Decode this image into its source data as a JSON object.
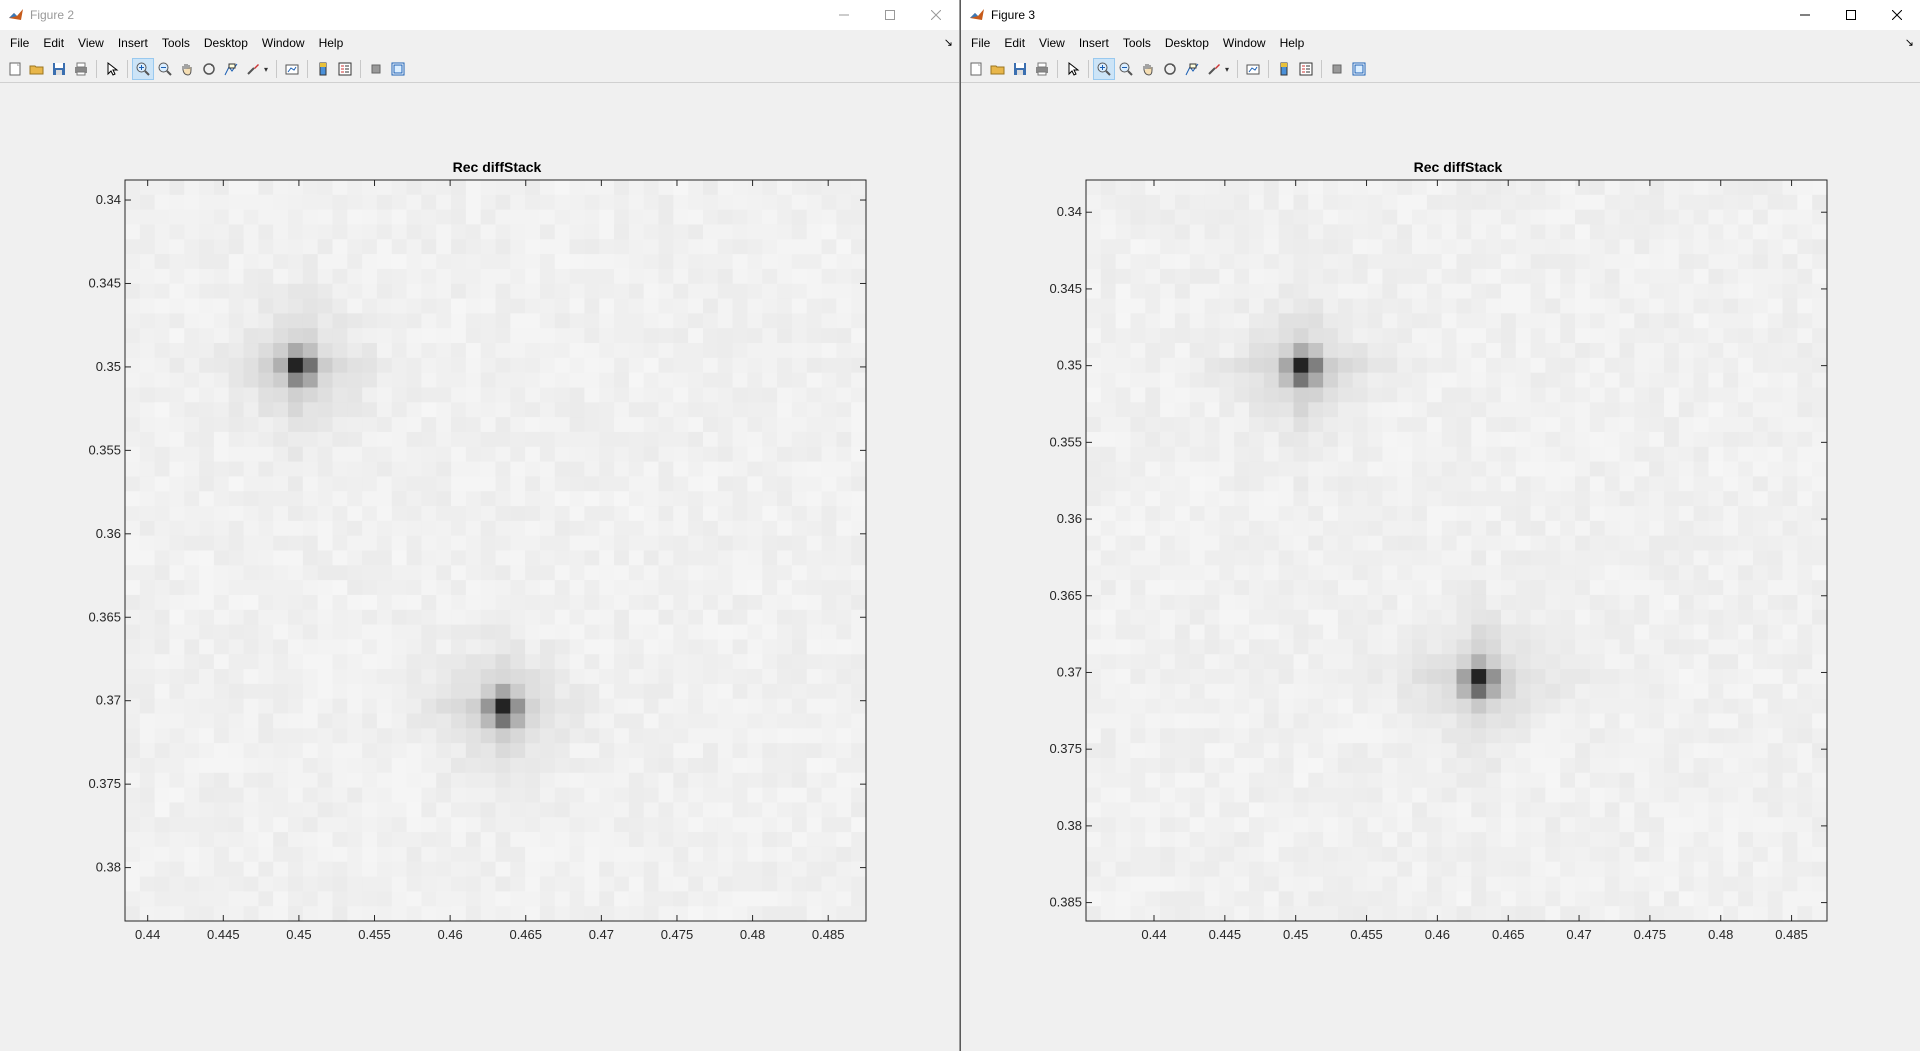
{
  "windows": [
    {
      "title": "Figure 2",
      "menus": [
        "File",
        "Edit",
        "View",
        "Insert",
        "Tools",
        "Desktop",
        "Window",
        "Help"
      ],
      "axes_title": "Rec diffStack",
      "chart_data": {
        "type": "heatmap",
        "title": "Rec diffStack",
        "colormap": "gray (white = low, black = high)",
        "x_ticks": [
          "0.44",
          "0.445",
          "0.45",
          "0.455",
          "0.46",
          "0.465",
          "0.47",
          "0.475",
          "0.48",
          "0.485"
        ],
        "y_ticks": [
          "0.34",
          "0.345",
          "0.35",
          "0.355",
          "0.36",
          "0.365",
          "0.37",
          "0.375",
          "0.38"
        ],
        "xlim": [
          0.4385,
          0.4875
        ],
        "ylim": [
          0.3388,
          0.3832
        ],
        "y_reversed": true,
        "grid": "50x50",
        "peaks": [
          {
            "x": 0.45,
            "y": 0.35
          },
          {
            "x": 0.4635,
            "y": 0.3705
          }
        ]
      }
    },
    {
      "title": "Figure 3",
      "menus": [
        "File",
        "Edit",
        "View",
        "Insert",
        "Tools",
        "Desktop",
        "Window",
        "Help"
      ],
      "axes_title": "Rec diffStack",
      "chart_data": {
        "type": "heatmap",
        "title": "Rec diffStack",
        "colormap": "gray (white = low, black = high)",
        "x_ticks": [
          "0.44",
          "0.445",
          "0.45",
          "0.455",
          "0.46",
          "0.465",
          "0.47",
          "0.475",
          "0.48",
          "0.485"
        ],
        "y_ticks": [
          "0.34",
          "0.345",
          "0.35",
          "0.355",
          "0.36",
          "0.365",
          "0.37",
          "0.375",
          "0.38",
          "0.385"
        ],
        "xlim": [
          0.4352,
          0.4875
        ],
        "ylim": [
          0.3379,
          0.3862
        ],
        "y_reversed": true,
        "grid": "50x50",
        "peaks": [
          {
            "x": 0.4505,
            "y": 0.3502
          },
          {
            "x": 0.463,
            "y": 0.3705
          }
        ]
      }
    }
  ]
}
